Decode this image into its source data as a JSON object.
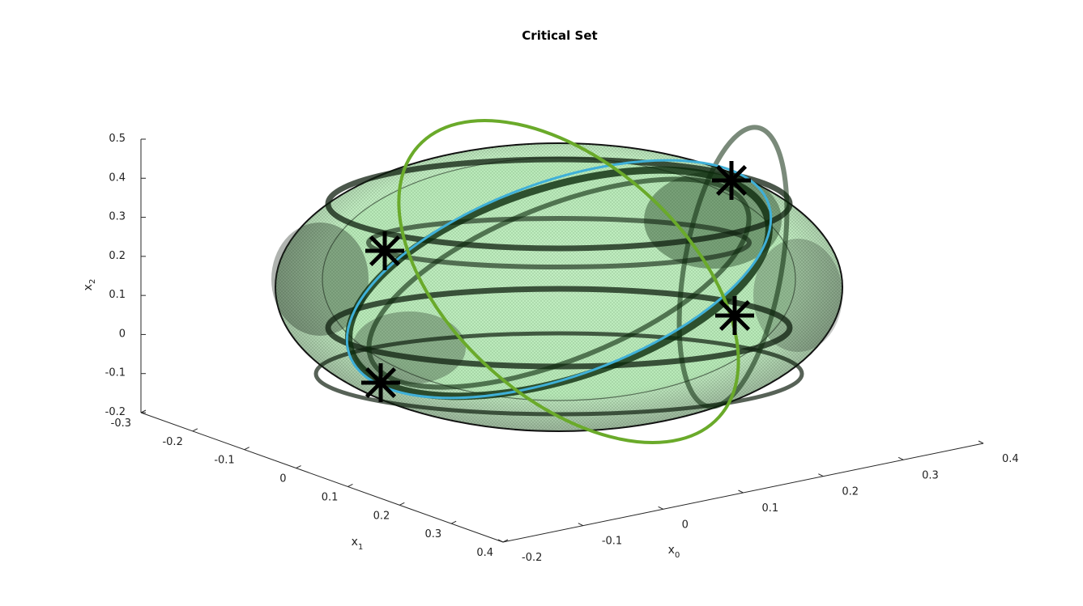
{
  "chart_data": {
    "type": "surface3d",
    "title": "Critical Set",
    "axes": {
      "x0": {
        "label": "x",
        "subscript": "0",
        "range": [
          -0.2,
          0.4
        ],
        "ticks": [
          "-0.2",
          "-0.1",
          "0",
          "0.1",
          "0.2",
          "0.3",
          "0.4"
        ]
      },
      "x1": {
        "label": "x",
        "subscript": "1",
        "range": [
          -0.3,
          0.4
        ],
        "ticks": [
          "-0.3",
          "-0.2",
          "-0.1",
          "0",
          "0.1",
          "0.2",
          "0.3",
          "0.4"
        ]
      },
      "x2": {
        "label": "x",
        "subscript": "2",
        "range": [
          -0.2,
          0.5
        ],
        "ticks": [
          "-0.2",
          "-0.1",
          "0",
          "0.1",
          "0.2",
          "0.3",
          "0.4",
          "0.5"
        ]
      }
    },
    "surface": {
      "shape": "ellipsoid",
      "face_color": "#8fdc8f",
      "edge_color": "#000000"
    },
    "curves": [
      {
        "color": "#3fb0d8"
      },
      {
        "color": "#6aaa2a"
      }
    ],
    "markers": [
      {
        "symbol": "asterisk",
        "color": "#000000"
      },
      {
        "symbol": "asterisk",
        "color": "#000000"
      },
      {
        "symbol": "asterisk",
        "color": "#000000"
      },
      {
        "symbol": "asterisk",
        "color": "#000000"
      }
    ],
    "grid": false,
    "legend": "none"
  }
}
